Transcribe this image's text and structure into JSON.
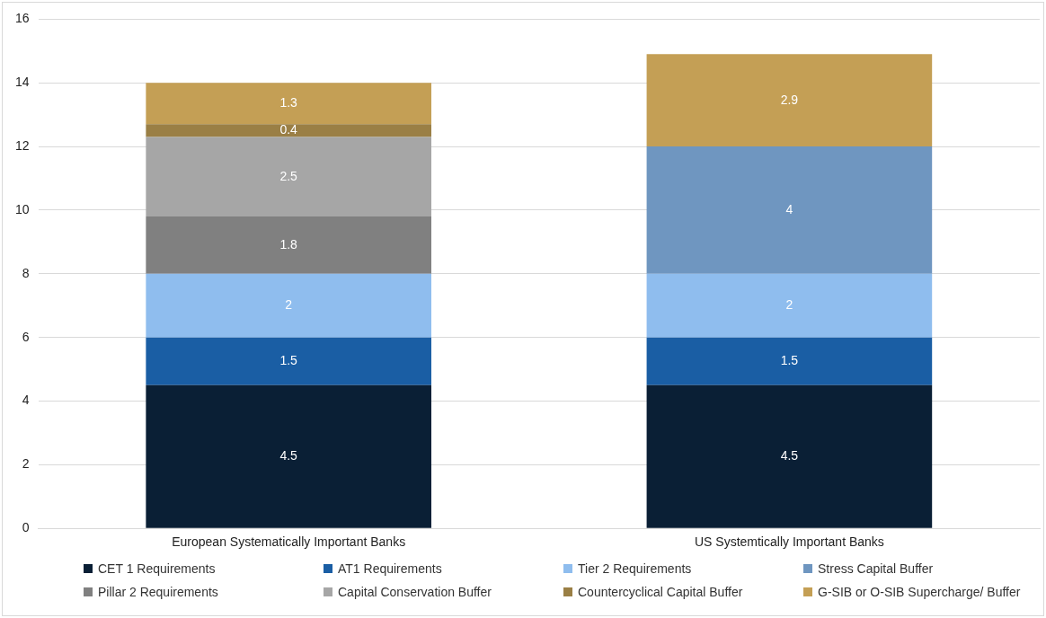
{
  "chart_data": {
    "type": "bar",
    "stacked": true,
    "categories": [
      "European Systematically Important Banks",
      "US Systemtically Important Banks"
    ],
    "series": [
      {
        "name": "CET 1 Requirements",
        "color": "#0a1f35",
        "values": [
          4.5,
          4.5
        ]
      },
      {
        "name": "AT1 Requirements",
        "color": "#1a5ea4",
        "values": [
          1.5,
          1.5
        ]
      },
      {
        "name": "Tier 2 Requirements",
        "color": "#8fbdee",
        "values": [
          2,
          2
        ]
      },
      {
        "name": "Stress Capital Buffer",
        "color": "#6f96c0",
        "values": [
          null,
          4
        ]
      },
      {
        "name": "Pillar 2 Requirements",
        "color": "#808080",
        "values": [
          1.8,
          null
        ]
      },
      {
        "name": "Capital Conservation Buffer",
        "color": "#a6a6a6",
        "values": [
          2.5,
          null
        ]
      },
      {
        "name": "Countercyclical Capital Buffer",
        "color": "#9a7f45",
        "values": [
          0.4,
          null
        ]
      },
      {
        "name": "G-SIB or O-SIB Supercharge/ Buffer",
        "color": "#c49f55",
        "values": [
          1.3,
          2.9
        ]
      }
    ],
    "ylim": [
      0,
      16
    ],
    "yticks": [
      0,
      2,
      4,
      6,
      8,
      10,
      12,
      14,
      16
    ],
    "grid": "y",
    "legend": "bottom",
    "data_labels": true
  }
}
